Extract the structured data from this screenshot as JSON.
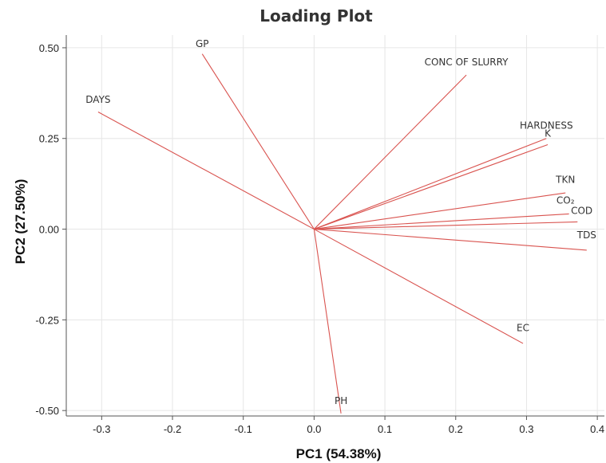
{
  "chart_data": {
    "type": "scatter",
    "subtype": "loading-plot",
    "title": "Loading Plot",
    "xlabel": "PC1 (54.38%)",
    "ylabel": "PC2 (27.50%)",
    "xlim": [
      -0.35,
      0.41
    ],
    "ylim": [
      -0.515,
      0.535
    ],
    "xticks": [
      -0.3,
      -0.2,
      -0.1,
      0.0,
      0.1,
      0.2,
      0.3,
      0.4
    ],
    "xtick_labels": [
      "-0.3",
      "-0.2",
      "-0.1",
      "0.0",
      "0.1",
      "0.2",
      "0.3",
      "0.4"
    ],
    "yticks": [
      -0.5,
      -0.25,
      0.0,
      0.25,
      0.5
    ],
    "ytick_labels": [
      "-0.50",
      "-0.25",
      "0.00",
      "0.25",
      "0.50"
    ],
    "grid": true,
    "vector_color": "#d9534f",
    "vectors": [
      {
        "label": "GP",
        "x": -0.158,
        "y": 0.483,
        "lx": -0.158,
        "ly": 0.502
      },
      {
        "label": "CONC OF SLURRY",
        "x": 0.215,
        "y": 0.425,
        "lx": 0.215,
        "ly": 0.451
      },
      {
        "label": "DAYS",
        "x": -0.305,
        "y": 0.323,
        "lx": -0.305,
        "ly": 0.348
      },
      {
        "label": "HARDNESS",
        "x": 0.328,
        "y": 0.25,
        "lx": 0.328,
        "ly": 0.277
      },
      {
        "label": "K",
        "x": 0.33,
        "y": 0.233,
        "lx": 0.33,
        "ly": 0.255
      },
      {
        "label": "TKN",
        "x": 0.355,
        "y": 0.1,
        "lx": 0.355,
        "ly": 0.128
      },
      {
        "label": "CO₂",
        "x": 0.36,
        "y": 0.042,
        "lx": 0.355,
        "ly": 0.07
      },
      {
        "label": "COD",
        "x": 0.372,
        "y": 0.02,
        "lx": 0.378,
        "ly": 0.042
      },
      {
        "label": "TDS",
        "x": 0.385,
        "y": -0.058,
        "lx": 0.385,
        "ly": -0.025
      },
      {
        "label": "EC",
        "x": 0.295,
        "y": -0.315,
        "lx": 0.295,
        "ly": -0.281
      },
      {
        "label": "PH",
        "x": 0.038,
        "y": -0.508,
        "lx": 0.038,
        "ly": -0.482
      }
    ]
  }
}
